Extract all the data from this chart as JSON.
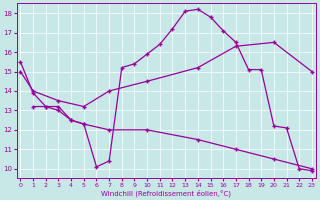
{
  "bg_color": "#c8e8e8",
  "line_color": "#990099",
  "series1": {
    "x": [
      0,
      1,
      2,
      3,
      4,
      5,
      6,
      7,
      8,
      9,
      10,
      11,
      12,
      13,
      14,
      15,
      16,
      17,
      18,
      19,
      20,
      21,
      22,
      23
    ],
    "y": [
      15.5,
      13.9,
      13.2,
      13.2,
      12.5,
      12.3,
      10.1,
      10.4,
      15.2,
      15.4,
      15.9,
      16.4,
      17.2,
      18.1,
      18.2,
      17.8,
      17.1,
      16.5,
      15.1,
      15.1,
      12.2,
      12.1,
      10.0,
      9.9
    ]
  },
  "series2": {
    "x": [
      0,
      1,
      3,
      5,
      7,
      10,
      14,
      17,
      20,
      23
    ],
    "y": [
      15.0,
      14.0,
      13.5,
      13.2,
      14.0,
      14.5,
      15.2,
      16.3,
      16.5,
      15.0
    ]
  },
  "series3": {
    "x": [
      1,
      2,
      3,
      4,
      5,
      7,
      10,
      14,
      17,
      20,
      23
    ],
    "y": [
      13.2,
      13.2,
      13.0,
      12.5,
      12.3,
      12.0,
      12.0,
      11.5,
      11.0,
      10.5,
      10.0
    ]
  },
  "xlabel": "Windchill (Refroidissement éolien,°C)",
  "xlim": [
    -0.3,
    23.3
  ],
  "ylim": [
    9.5,
    18.5
  ],
  "yticks": [
    10,
    11,
    12,
    13,
    14,
    15,
    16,
    17,
    18
  ],
  "xticks": [
    0,
    1,
    2,
    3,
    4,
    5,
    6,
    7,
    8,
    9,
    10,
    11,
    12,
    13,
    14,
    15,
    16,
    17,
    18,
    19,
    20,
    21,
    22,
    23
  ]
}
